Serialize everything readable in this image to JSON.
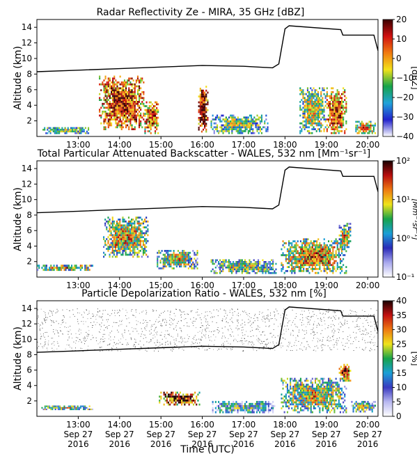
{
  "shared_x_axis": {
    "label": "Time (UTC)",
    "ticks": [
      {
        "value": 13,
        "time": "13:00",
        "date": "Sep 27",
        "year": "2016"
      },
      {
        "value": 14,
        "time": "14:00",
        "date": "Sep 27",
        "year": "2016"
      },
      {
        "value": 15,
        "time": "15:00",
        "date": "Sep 27",
        "year": "2016"
      },
      {
        "value": 16,
        "time": "16:00",
        "date": "Sep 27",
        "year": "2016"
      },
      {
        "value": 17,
        "time": "17:00",
        "date": "Sep 27",
        "year": "2016"
      },
      {
        "value": 18,
        "time": "18:00",
        "date": "Sep 27",
        "year": "2016"
      },
      {
        "value": 19,
        "time": "19:00",
        "date": "Sep 27",
        "year": "2016"
      },
      {
        "value": 20,
        "time": "20:00",
        "date": "Sep 27",
        "year": "2016"
      }
    ],
    "range": [
      12.0,
      20.25
    ]
  },
  "panels": [
    {
      "id": "radar",
      "title": "Radar Reflectivity Ze - MIRA, 35 GHz [dBZ]",
      "colorbar": {
        "scale": "linear",
        "ticks": [
          "−40",
          "−30",
          "−20",
          "−10",
          "0",
          "10",
          "20"
        ],
        "label": "[dBZ]",
        "colors": [
          "#ffffff",
          "#2222cc",
          "#21a3d9",
          "#16a34a",
          "#f2e21b",
          "#f07a10",
          "#d01010",
          "#3a0000"
        ]
      }
    },
    {
      "id": "backscatter",
      "title": "Total Particular Attenuated Backscatter - WALES, 532 nm [Mm⁻¹sr⁻¹]",
      "colorbar": {
        "scale": "log",
        "ticks": [
          "10⁻¹",
          "10⁰",
          "10¹",
          "10²"
        ],
        "label": "[Mm⁻¹sr⁻¹]",
        "colors": [
          "#ffffff",
          "#a8a8ee",
          "#2a2ab8",
          "#1a9fd6",
          "#17a34a",
          "#efe31b",
          "#ee7a12",
          "#b80d0d",
          "#1a0000"
        ]
      }
    },
    {
      "id": "depol",
      "title": "Particle Depolarization Ratio - WALES, 532 nm [%]",
      "colorbar": {
        "scale": "linear",
        "ticks": [
          "0",
          "5",
          "10",
          "15",
          "20",
          "25",
          "30",
          "35",
          "40"
        ],
        "label": "[%]",
        "colors": [
          "#ffffff",
          "#b8b8f0",
          "#3a3ac0",
          "#1a9fd6",
          "#17a34a",
          "#efe31b",
          "#ee7a12",
          "#c21010",
          "#1a0000"
        ]
      }
    }
  ],
  "chart_data": [
    {
      "type": "heatmap",
      "title": "Radar Reflectivity Ze - MIRA, 35 GHz [dBZ]",
      "xlabel": "Time (UTC)",
      "ylabel": "Altitude (km)",
      "xlim": [
        12.0,
        20.25
      ],
      "ylim": [
        0,
        15
      ],
      "yticks": [
        2,
        4,
        6,
        8,
        10,
        12,
        14
      ],
      "clim": [
        -40,
        20
      ],
      "colorbar_label": "[dBZ]",
      "flight_altitude": {
        "x": [
          12.0,
          13.0,
          14.0,
          15.0,
          16.0,
          17.0,
          17.7,
          17.85,
          18.0,
          18.1,
          19.35,
          19.4,
          20.15,
          20.25
        ],
        "y": [
          8.3,
          8.5,
          8.7,
          8.9,
          9.1,
          9.0,
          8.8,
          9.3,
          13.8,
          14.2,
          13.7,
          13.0,
          13.0,
          11.0
        ]
      },
      "cloud_regions": [
        {
          "x": [
            12.1,
            13.3
          ],
          "y": [
            0.3,
            1.2
          ],
          "intensity": 0.35
        },
        {
          "x": [
            13.5,
            14.6
          ],
          "y": [
            0.8,
            7.8
          ],
          "intensity": 0.75
        },
        {
          "x": [
            14.6,
            14.95
          ],
          "y": [
            0.3,
            4.5
          ],
          "intensity": 0.7
        },
        {
          "x": [
            15.9,
            16.15
          ],
          "y": [
            0.5,
            6.5
          ],
          "intensity": 0.85
        },
        {
          "x": [
            16.2,
            17.6
          ],
          "y": [
            0.3,
            2.8
          ],
          "intensity": 0.35
        },
        {
          "x": [
            18.35,
            19.0
          ],
          "y": [
            0.3,
            6.3
          ],
          "intensity": 0.45
        },
        {
          "x": [
            19.0,
            19.5
          ],
          "y": [
            0.3,
            6.3
          ],
          "intensity": 0.7
        },
        {
          "x": [
            19.7,
            20.2
          ],
          "y": [
            0.3,
            2.0
          ],
          "intensity": 0.55
        }
      ]
    },
    {
      "type": "heatmap",
      "title": "Total Particular Attenuated Backscatter - WALES, 532 nm [Mm⁻¹sr⁻¹]",
      "xlabel": "Time (UTC)",
      "ylabel": "Altitude (km)",
      "xlim": [
        12.0,
        20.25
      ],
      "ylim": [
        0,
        15
      ],
      "yticks": [
        2,
        4,
        6,
        8,
        10,
        12,
        14
      ],
      "clim": [
        0.1,
        100
      ],
      "cscale": "log",
      "colorbar_label": "[Mm⁻¹sr⁻¹]",
      "flight_altitude": {
        "x": [
          12.0,
          13.0,
          14.0,
          15.0,
          16.0,
          17.0,
          17.7,
          17.85,
          18.0,
          18.1,
          19.35,
          19.4,
          20.15,
          20.25
        ],
        "y": [
          8.3,
          8.5,
          8.7,
          8.9,
          9.1,
          9.0,
          8.8,
          9.3,
          13.8,
          14.2,
          13.7,
          13.0,
          13.0,
          11.0
        ]
      },
      "cloud_regions": [
        {
          "x": [
            12.0,
            13.4
          ],
          "y": [
            0.8,
            1.6
          ],
          "intensity": 0.55
        },
        {
          "x": [
            13.6,
            14.7
          ],
          "y": [
            2.5,
            7.8
          ],
          "intensity": 0.55
        },
        {
          "x": [
            14.9,
            15.9
          ],
          "y": [
            1.0,
            3.5
          ],
          "intensity": 0.5
        },
        {
          "x": [
            16.2,
            17.8
          ],
          "y": [
            0.4,
            2.3
          ],
          "intensity": 0.45
        },
        {
          "x": [
            17.9,
            19.5
          ],
          "y": [
            0.4,
            5.0
          ],
          "intensity": 0.6
        },
        {
          "x": [
            19.3,
            19.6
          ],
          "y": [
            3.5,
            7.0
          ],
          "intensity": 0.5
        }
      ]
    },
    {
      "type": "heatmap",
      "title": "Particle Depolarization Ratio - WALES, 532 nm [%]",
      "xlabel": "Time (UTC)",
      "ylabel": "Altitude (km)",
      "xlim": [
        12.0,
        20.25
      ],
      "ylim": [
        0,
        15
      ],
      "yticks": [
        2,
        4,
        6,
        8,
        10,
        12,
        14
      ],
      "clim": [
        0,
        40
      ],
      "colorbar_label": "[%]",
      "flight_altitude": {
        "x": [
          12.0,
          13.0,
          14.0,
          15.0,
          16.0,
          17.0,
          17.7,
          17.85,
          18.0,
          18.1,
          19.35,
          19.4,
          20.15,
          20.25
        ],
        "y": [
          8.3,
          8.5,
          8.7,
          8.9,
          9.1,
          9.0,
          8.8,
          9.3,
          13.8,
          14.2,
          13.7,
          13.0,
          13.0,
          11.0
        ]
      },
      "cloud_regions": [
        {
          "x": [
            12.0,
            13.4
          ],
          "y": [
            0.8,
            1.4
          ],
          "intensity": 0.45
        },
        {
          "x": [
            14.95,
            15.95
          ],
          "y": [
            1.4,
            3.2
          ],
          "intensity": 0.8
        },
        {
          "x": [
            16.2,
            17.8
          ],
          "y": [
            0.4,
            2.0
          ],
          "intensity": 0.3
        },
        {
          "x": [
            17.9,
            19.5
          ],
          "y": [
            0.4,
            5.0
          ],
          "intensity": 0.5
        },
        {
          "x": [
            19.3,
            19.6
          ],
          "y": [
            4.5,
            6.8
          ],
          "intensity": 0.75
        },
        {
          "x": [
            19.6,
            20.2
          ],
          "y": [
            0.5,
            2.0
          ],
          "intensity": 0.45
        }
      ],
      "noise_band": {
        "y": [
          8.5,
          14.0
        ],
        "x": [
          12.0,
          20.25
        ]
      }
    }
  ]
}
